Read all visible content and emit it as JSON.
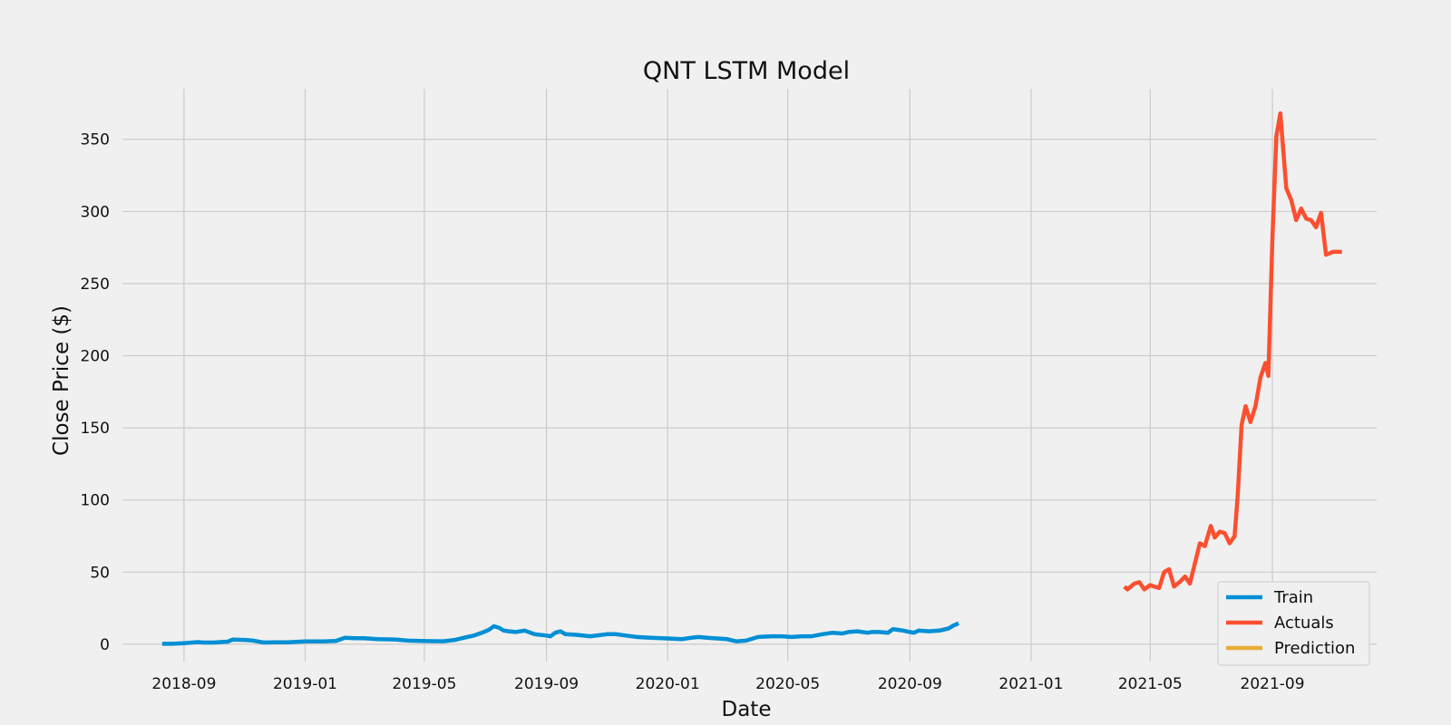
{
  "chart_data": {
    "type": "line",
    "title": "QNT LSTM Model",
    "xlabel": "Date",
    "ylabel": "Close Price ($)",
    "xlim": [
      "2018-07-01",
      "2021-12-15"
    ],
    "ylim": [
      -12,
      385
    ],
    "grid": true,
    "legend_position": "bottom-right",
    "x_ticks": [
      "2018-09-01",
      "2019-01-01",
      "2019-05-01",
      "2019-09-01",
      "2020-01-01",
      "2020-05-01",
      "2020-09-01",
      "2021-01-01",
      "2021-05-01",
      "2021-09-01"
    ],
    "x_tick_labels": [
      "2018-09",
      "2019-01",
      "2019-05",
      "2019-09",
      "2020-01",
      "2020-05",
      "2020-09",
      "2021-01",
      "2021-05",
      "2021-09"
    ],
    "y_ticks": [
      0,
      50,
      100,
      150,
      200,
      250,
      300,
      350
    ],
    "y_tick_labels": [
      "0",
      "50",
      "100",
      "150",
      "200",
      "250",
      "300",
      "350"
    ],
    "series": [
      {
        "name": "Train",
        "color": "#008fd5",
        "x": [
          "2018-08-10",
          "2018-08-20",
          "2018-09-01",
          "2018-09-15",
          "2018-09-20",
          "2018-10-01",
          "2018-10-15",
          "2018-10-20",
          "2018-11-01",
          "2018-11-10",
          "2018-11-20",
          "2018-12-01",
          "2018-12-15",
          "2019-01-01",
          "2019-01-20",
          "2019-02-01",
          "2019-02-10",
          "2019-02-20",
          "2019-03-01",
          "2019-03-15",
          "2019-04-01",
          "2019-04-15",
          "2019-05-01",
          "2019-05-20",
          "2019-06-01",
          "2019-06-10",
          "2019-06-20",
          "2019-06-28",
          "2019-07-05",
          "2019-07-10",
          "2019-07-15",
          "2019-07-20",
          "2019-07-25",
          "2019-08-01",
          "2019-08-10",
          "2019-08-20",
          "2019-09-01",
          "2019-09-05",
          "2019-09-10",
          "2019-09-15",
          "2019-09-20",
          "2019-10-01",
          "2019-10-15",
          "2019-11-01",
          "2019-11-10",
          "2019-11-20",
          "2019-12-01",
          "2019-12-15",
          "2020-01-01",
          "2020-01-15",
          "2020-01-25",
          "2020-02-01",
          "2020-02-10",
          "2020-02-20",
          "2020-03-01",
          "2020-03-10",
          "2020-03-20",
          "2020-04-01",
          "2020-04-15",
          "2020-04-25",
          "2020-05-05",
          "2020-05-15",
          "2020-05-25",
          "2020-06-05",
          "2020-06-15",
          "2020-06-25",
          "2020-07-01",
          "2020-07-10",
          "2020-07-20",
          "2020-07-25",
          "2020-08-01",
          "2020-08-10",
          "2020-08-15",
          "2020-08-20",
          "2020-08-25",
          "2020-09-01",
          "2020-09-05",
          "2020-09-10",
          "2020-09-20",
          "2020-10-01",
          "2020-10-10",
          "2020-10-15",
          "2020-10-20"
        ],
        "values": [
          0.3,
          0.3,
          0.7,
          1.5,
          1.2,
          1.2,
          1.8,
          3.2,
          3.0,
          2.5,
          1.2,
          1.4,
          1.4,
          2.0,
          2.0,
          2.3,
          4.5,
          4.2,
          4.2,
          3.5,
          3.3,
          2.5,
          2.2,
          2.1,
          3.0,
          4.5,
          6.0,
          8.0,
          10.0,
          12.5,
          11.5,
          9.5,
          9.0,
          8.5,
          9.5,
          7.0,
          6.0,
          5.5,
          8.0,
          9.0,
          7.0,
          6.5,
          5.5,
          7.0,
          7.0,
          6.0,
          5.0,
          4.5,
          4.0,
          3.5,
          4.5,
          5.0,
          4.5,
          4.0,
          3.5,
          2.0,
          2.5,
          5.0,
          5.5,
          5.5,
          5.0,
          5.5,
          5.5,
          7.0,
          8.0,
          7.5,
          8.5,
          9.0,
          8.0,
          8.5,
          8.5,
          8.0,
          10.5,
          10.0,
          9.5,
          8.5,
          8.0,
          9.5,
          9.0,
          9.5,
          11.0,
          13.0,
          14.5
        ]
      },
      {
        "name": "Actuals",
        "color": "#fc4f30",
        "x": [
          "2021-04-05",
          "2021-04-08",
          "2021-04-15",
          "2021-04-20",
          "2021-04-25",
          "2021-05-01",
          "2021-05-05",
          "2021-05-10",
          "2021-05-15",
          "2021-05-20",
          "2021-05-25",
          "2021-06-01",
          "2021-06-05",
          "2021-06-10",
          "2021-06-15",
          "2021-06-20",
          "2021-06-25",
          "2021-07-01",
          "2021-07-05",
          "2021-07-10",
          "2021-07-15",
          "2021-07-20",
          "2021-07-25",
          "2021-07-28",
          "2021-08-01",
          "2021-08-05",
          "2021-08-10",
          "2021-08-15",
          "2021-08-20",
          "2021-08-25",
          "2021-08-28",
          "2021-09-01",
          "2021-09-05",
          "2021-09-09",
          "2021-09-15",
          "2021-09-20",
          "2021-09-25",
          "2021-09-30",
          "2021-10-05",
          "2021-10-10",
          "2021-10-15",
          "2021-10-20",
          "2021-10-25",
          "2021-11-01",
          "2021-11-10"
        ],
        "values": [
          40,
          38,
          42,
          43,
          38,
          41,
          40,
          39,
          50,
          52,
          40,
          44,
          47,
          42,
          56,
          70,
          68,
          82,
          74,
          78,
          77,
          70,
          75,
          102,
          152,
          165,
          154,
          165,
          185,
          195,
          186,
          280,
          352,
          368,
          316,
          308,
          294,
          302,
          295,
          294,
          289,
          299,
          270,
          272,
          272
        ]
      },
      {
        "name": "Prediction",
        "color": "#e5ae38",
        "x": [],
        "values": []
      }
    ]
  }
}
